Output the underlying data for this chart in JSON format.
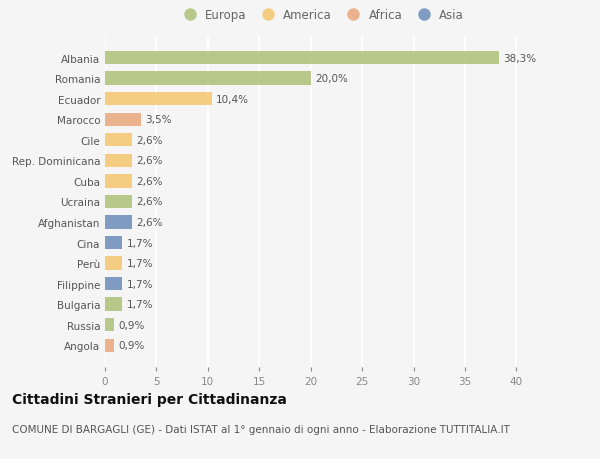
{
  "categories": [
    "Albania",
    "Romania",
    "Ecuador",
    "Marocco",
    "Cile",
    "Rep. Dominicana",
    "Cuba",
    "Ucraina",
    "Afghanistan",
    "Cina",
    "Perù",
    "Filippine",
    "Bulgaria",
    "Russia",
    "Angola"
  ],
  "values": [
    38.3,
    20.0,
    10.4,
    3.5,
    2.6,
    2.6,
    2.6,
    2.6,
    2.6,
    1.7,
    1.7,
    1.7,
    1.7,
    0.9,
    0.9
  ],
  "labels": [
    "38,3%",
    "20,0%",
    "10,4%",
    "3,5%",
    "2,6%",
    "2,6%",
    "2,6%",
    "2,6%",
    "2,6%",
    "1,7%",
    "1,7%",
    "1,7%",
    "1,7%",
    "0,9%",
    "0,9%"
  ],
  "colors": [
    "#adc178",
    "#adc178",
    "#f5c76e",
    "#e9a87c",
    "#f5c76e",
    "#f5c76e",
    "#f5c76e",
    "#adc178",
    "#6b8cba",
    "#6b8cba",
    "#f5c76e",
    "#6b8cba",
    "#adc178",
    "#adc178",
    "#e9a87c"
  ],
  "legend_labels": [
    "Europa",
    "America",
    "Africa",
    "Asia"
  ],
  "legend_colors": [
    "#adc178",
    "#f5c76e",
    "#e9a87c",
    "#6b8cba"
  ],
  "title": "Cittadini Stranieri per Cittadinanza",
  "subtitle": "COMUNE DI BARGAGLI (GE) - Dati ISTAT al 1° gennaio di ogni anno - Elaborazione TUTTITALIA.IT",
  "xlim": [
    0,
    42
  ],
  "xticks": [
    0,
    5,
    10,
    15,
    20,
    25,
    30,
    35,
    40
  ],
  "bg_color": "#f5f5f5",
  "bar_height": 0.65,
  "title_fontsize": 10,
  "subtitle_fontsize": 7.5,
  "label_fontsize": 7.5,
  "tick_fontsize": 7.5,
  "legend_fontsize": 8.5
}
